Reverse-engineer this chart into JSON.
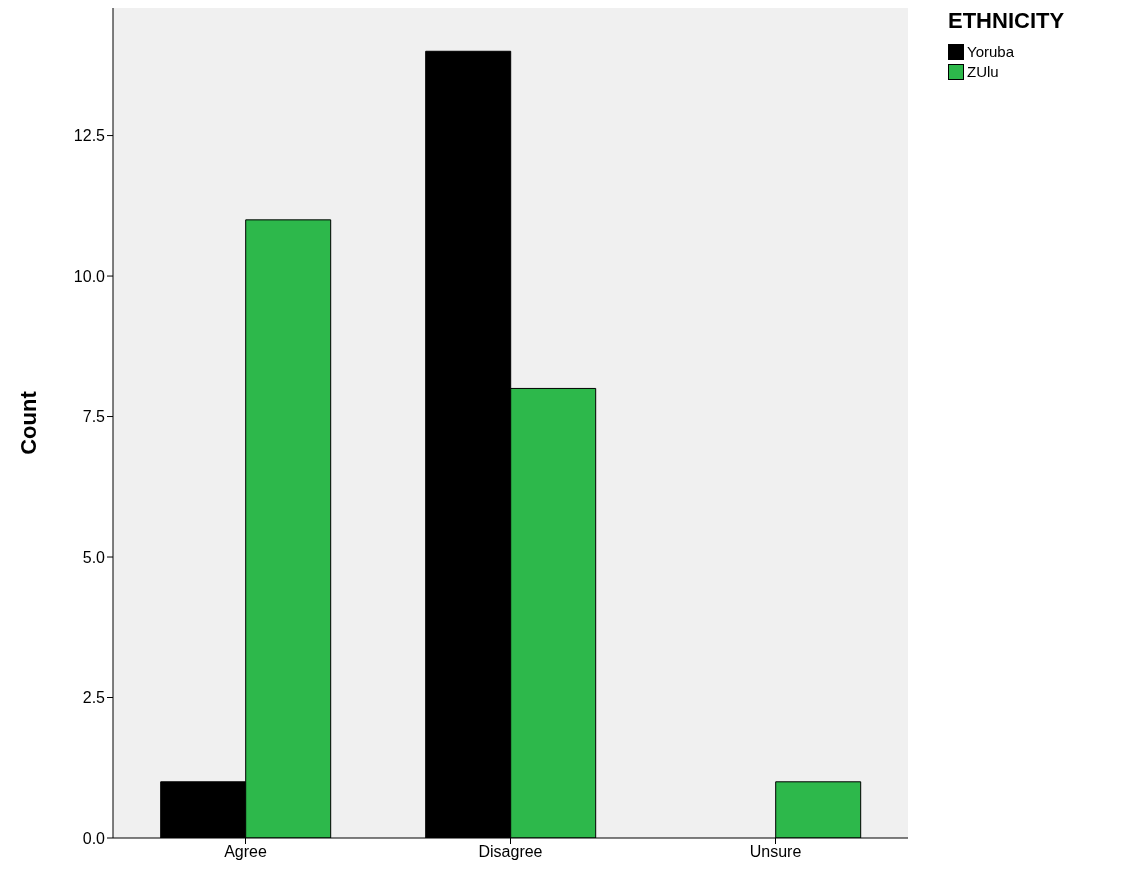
{
  "chart_data": {
    "type": "bar",
    "ylabel": "Count",
    "legend_title": "ETHNICITY",
    "legend": "top right",
    "grid": false,
    "categories": [
      "Agree",
      "Disagree",
      "Unsure"
    ],
    "series": [
      {
        "name": "Yoruba",
        "color": "#000000",
        "values": [
          1,
          14,
          0
        ]
      },
      {
        "name": "ZUlu",
        "color": "#2db84b",
        "values": [
          11,
          8,
          1
        ]
      }
    ],
    "ylim": [
      0,
      14.77
    ],
    "yticks": [
      {
        "value": 0,
        "label": "0.0"
      },
      2.5,
      {
        "value": 5,
        "label": "5.0"
      },
      {
        "value": 7.5,
        "label": "7.5"
      },
      {
        "value": 10,
        "label": "10.0"
      },
      {
        "value": 12.5,
        "label": "12.5"
      }
    ]
  }
}
